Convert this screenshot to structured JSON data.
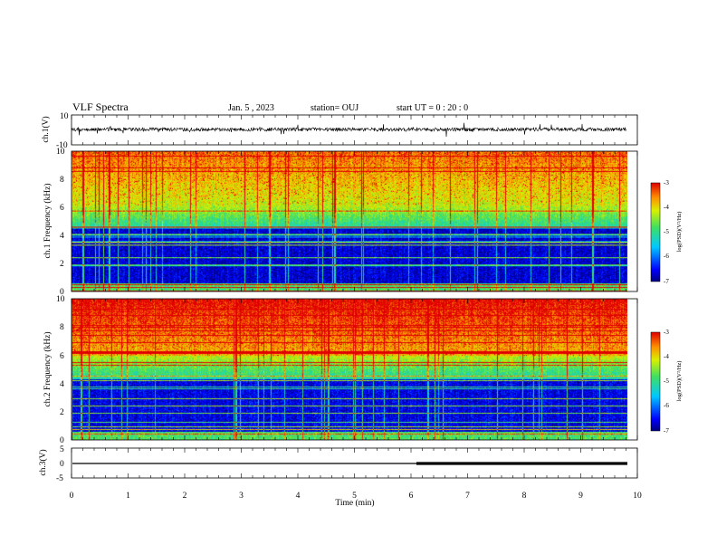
{
  "header": {
    "title": "VLF Spectra",
    "date": "Jan. 5 , 2023",
    "station": "station= OUJ",
    "start": "start UT = 0 : 20 : 0"
  },
  "chart_data": [
    {
      "type": "line",
      "ylabel": "ch.1(V)",
      "xlim": [
        0,
        10
      ],
      "ylim": [
        -10,
        10
      ],
      "yticks": [
        "10",
        "-10"
      ],
      "series": [
        {
          "x": [
            0,
            9.8
          ],
          "y": [
            0,
            0
          ]
        }
      ]
    },
    {
      "type": "heatmap",
      "ylabel": "ch.1 Frequency (kHz)",
      "xlim": [
        0,
        10
      ],
      "ylim": [
        0,
        10
      ],
      "yticks": [
        "0",
        "2",
        "4",
        "6",
        "8",
        "10"
      ],
      "colorbar": {
        "label": "log(PSD)(V²/Hz)",
        "range": [
          -7,
          -3
        ],
        "ticks": [
          "-3",
          "-4",
          "-5",
          "-6",
          "-7"
        ]
      }
    },
    {
      "type": "heatmap",
      "ylabel": "ch.2 Frequency (kHz)",
      "xlim": [
        0,
        10
      ],
      "ylim": [
        0,
        10
      ],
      "yticks": [
        "0",
        "2",
        "4",
        "6",
        "8",
        "10"
      ],
      "colorbar": {
        "label": "log(PSD)(V²/Hz)",
        "range": [
          -7,
          -3
        ],
        "ticks": [
          "-3",
          "-4",
          "-5",
          "-6",
          "-7"
        ]
      }
    },
    {
      "type": "line",
      "ylabel": "ch.3(V)",
      "xlabel": "Time (min)",
      "xlim": [
        0,
        10
      ],
      "ylim": [
        -5,
        5
      ],
      "yticks": [
        "5",
        "0",
        "-5"
      ],
      "xticks": [
        "0",
        "1",
        "2",
        "3",
        "4",
        "5",
        "6",
        "7",
        "8",
        "9",
        "10"
      ],
      "series": [
        {
          "x": [
            0,
            9.8
          ],
          "y": [
            0,
            0
          ]
        }
      ]
    }
  ]
}
